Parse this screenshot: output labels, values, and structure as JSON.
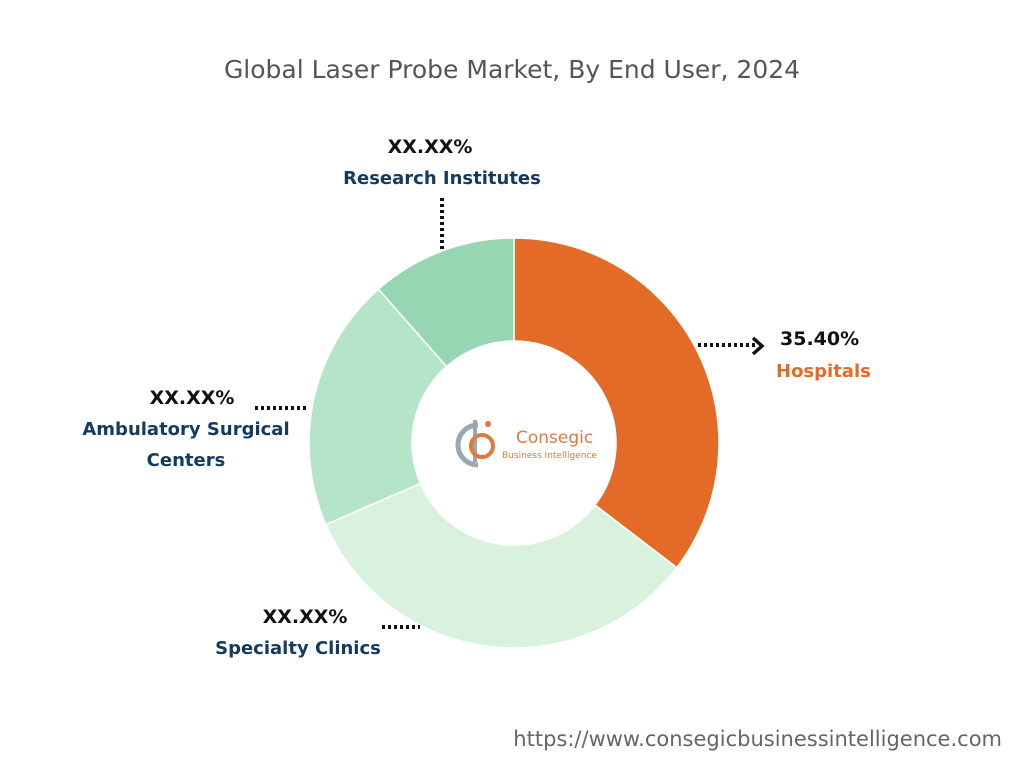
{
  "chart_data": {
    "type": "pie",
    "title": "Global Laser Probe Market, By End User, 2024",
    "hole": "donut",
    "categories": [
      "Hospitals",
      "Specialty Clinics",
      "Ambulatory Surgical Centers",
      "Research Institutes"
    ],
    "series": [
      {
        "values": [
          35.4,
          33.1,
          20.0,
          11.5
        ],
        "value_labels": [
          "35.40%",
          "XX.XX%",
          "XX.XX%",
          "XX.XX%"
        ],
        "label_lines": [
          [
            "Hospitals"
          ],
          [
            "Specialty Clinics"
          ],
          [
            "Ambulatory Surgical",
            "Centers"
          ],
          [
            "Research Institutes"
          ]
        ],
        "colors": [
          "#e46a27",
          "#d9f2de",
          "#b5e5c8",
          "#96d6b3"
        ],
        "label_colors": [
          "#e46a27",
          "#143a5e",
          "#143a5e",
          "#143a5e"
        ]
      }
    ]
  },
  "logo": {
    "name": "Consegic",
    "tagline": "Business Intelligence",
    "mark": "cb-logo-icon",
    "colors": [
      "#e07a3a",
      "#9aa8b6"
    ]
  },
  "footer": {
    "url": "https://www.consegicbusinessintelligence.com"
  }
}
